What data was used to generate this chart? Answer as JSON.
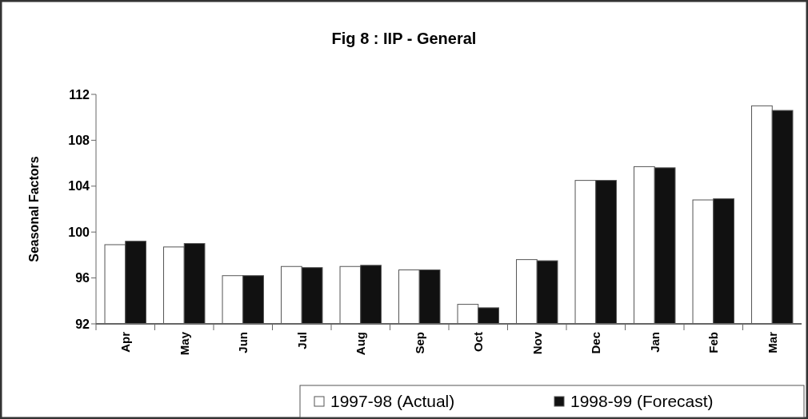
{
  "chart_data": {
    "type": "bar",
    "title": "Fig 8 : IIP - General",
    "ylabel": "Seasonal Factors",
    "categories": [
      "Apr",
      "May",
      "Jun",
      "Jul",
      "Aug",
      "Sep",
      "Oct",
      "Nov",
      "Dec",
      "Jan",
      "Feb",
      "Mar"
    ],
    "series": [
      {
        "name": "1997-98 (Actual)",
        "color": "#ffffff",
        "values": [
          98.9,
          98.7,
          96.2,
          97.0,
          97.0,
          96.7,
          93.7,
          97.6,
          104.5,
          105.7,
          102.8,
          111.0
        ]
      },
      {
        "name": "1998-99 (Forecast)",
        "color": "#111111",
        "values": [
          99.2,
          99.0,
          96.2,
          96.9,
          97.1,
          96.7,
          93.4,
          97.5,
          104.5,
          105.6,
          102.9,
          110.6
        ]
      }
    ],
    "ylim": [
      92,
      112
    ],
    "yticks": [
      92,
      96,
      100,
      104,
      108,
      112
    ],
    "legend": "bottom right"
  }
}
